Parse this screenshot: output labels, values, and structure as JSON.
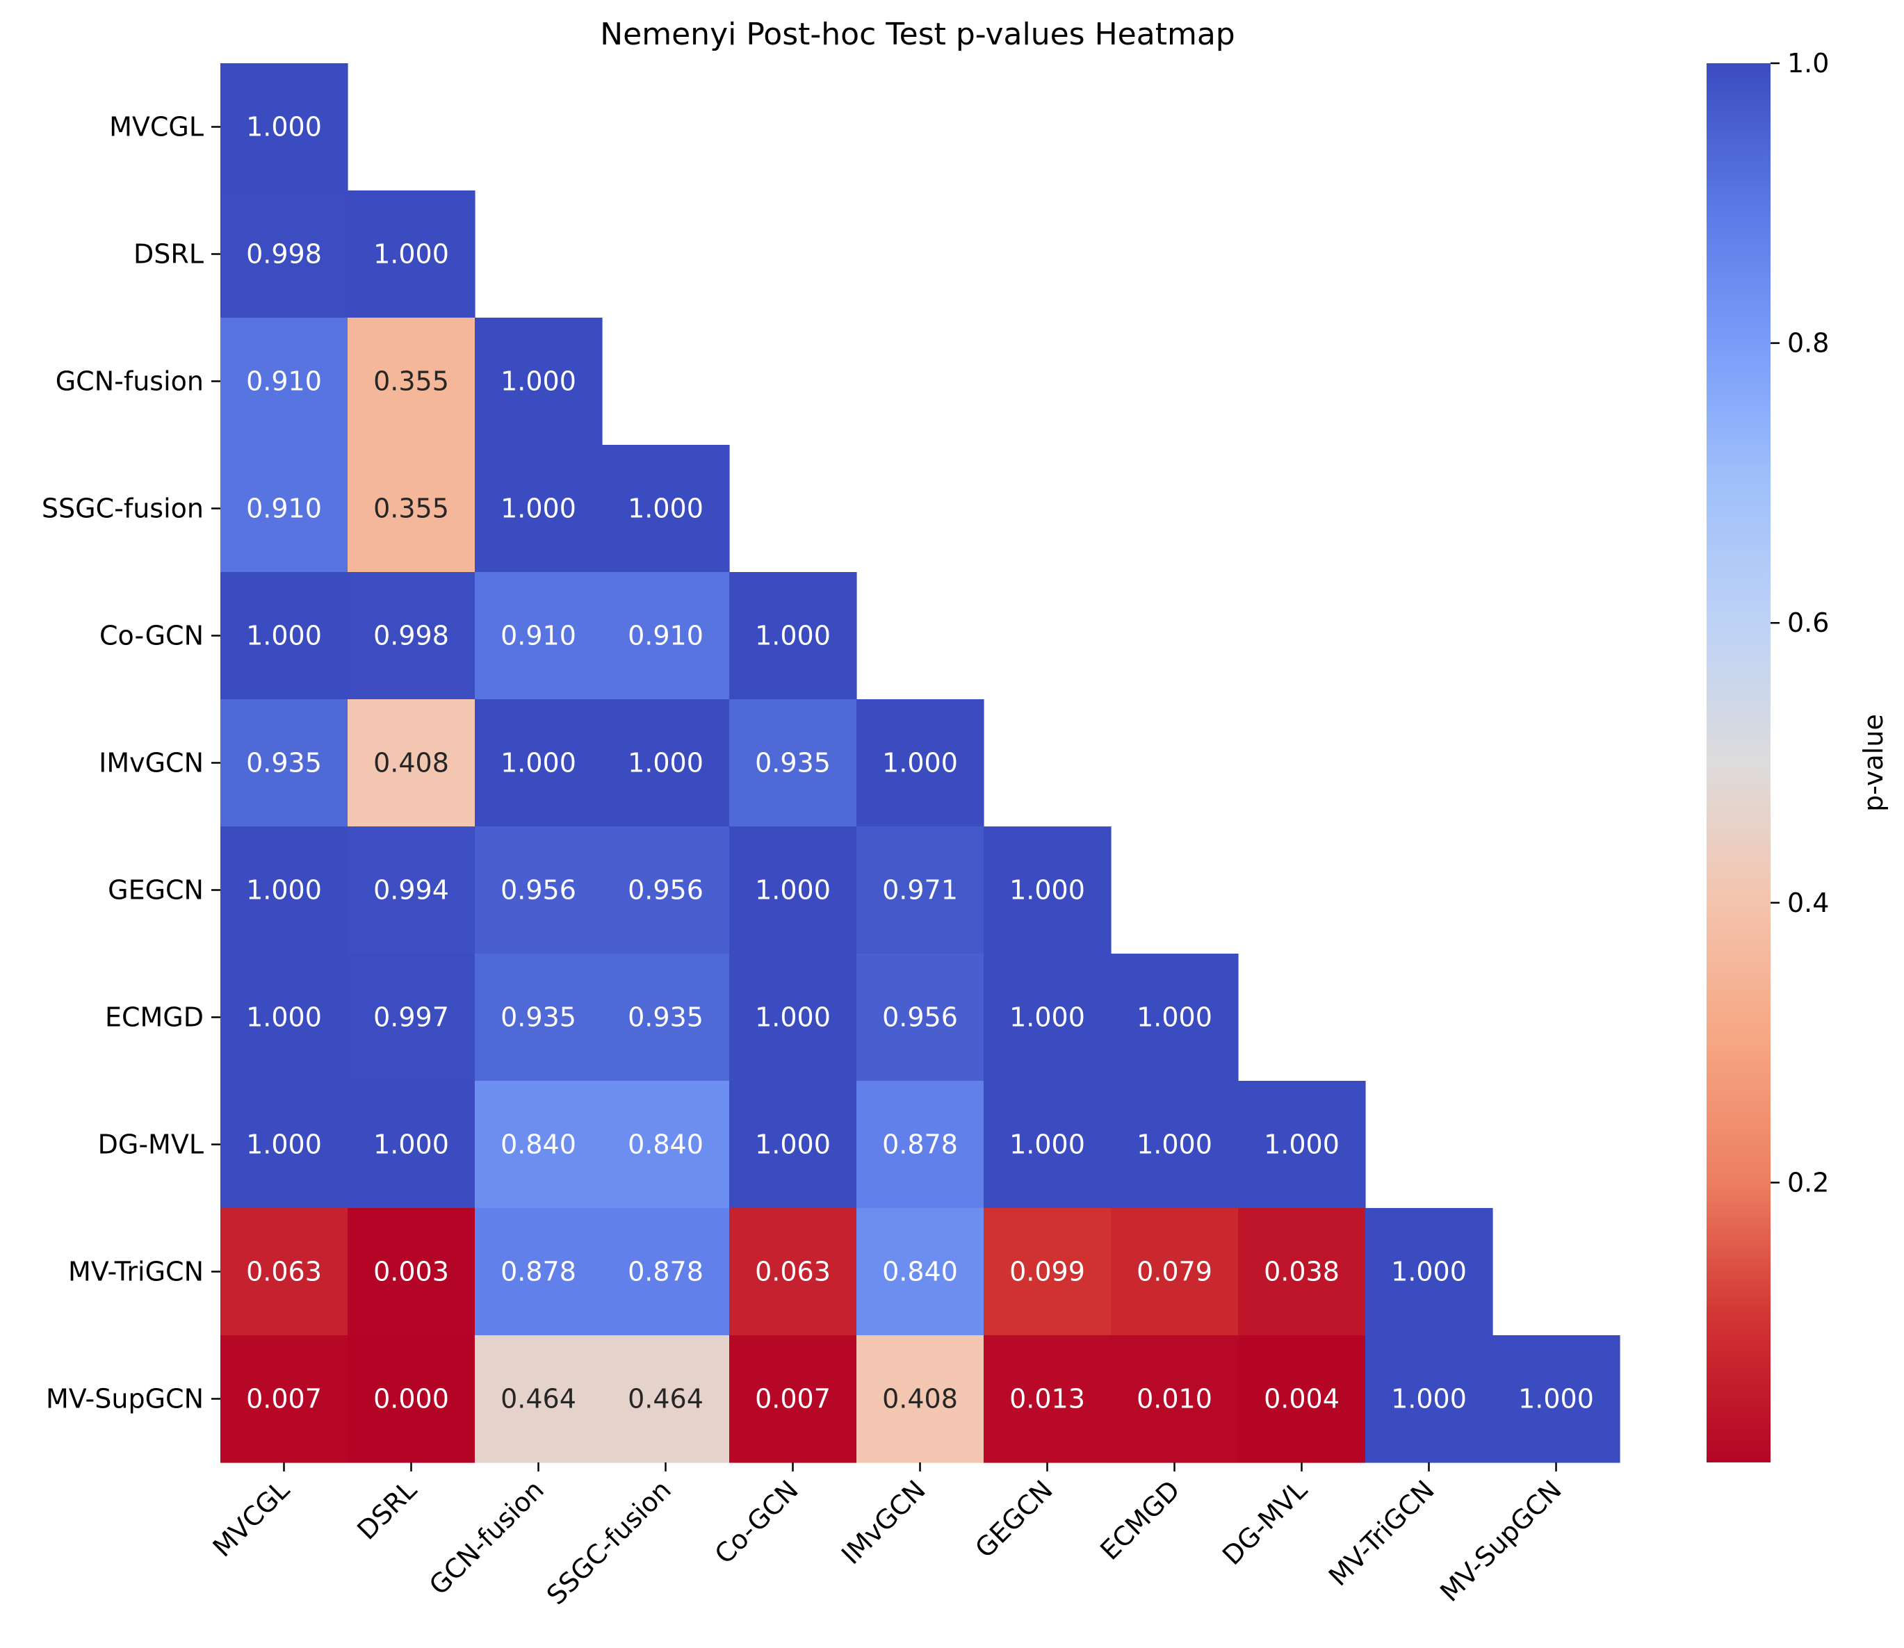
{
  "chart_data": {
    "type": "heatmap",
    "title": "Nemenyi Post-hoc Test p-values Heatmap",
    "xlabel": "",
    "ylabel": "",
    "mask": "lower-triangle-with-diagonal",
    "rows": [
      "MVCGL",
      "DSRL",
      "GCN-fusion",
      "SSGC-fusion",
      "Co-GCN",
      "IMvGCN",
      "GEGCN",
      "ECMGD",
      "DG-MVL",
      "MV-TriGCN",
      "MV-SupGCN"
    ],
    "columns": [
      "MVCGL",
      "DSRL",
      "GCN-fusion",
      "SSGC-fusion",
      "Co-GCN",
      "IMvGCN",
      "GEGCN",
      "ECMGD",
      "DG-MVL",
      "MV-TriGCN",
      "MV-SupGCN"
    ],
    "values": [
      [
        1.0
      ],
      [
        0.998,
        1.0
      ],
      [
        0.91,
        0.355,
        1.0
      ],
      [
        0.91,
        0.355,
        1.0,
        1.0
      ],
      [
        1.0,
        0.998,
        0.91,
        0.91,
        1.0
      ],
      [
        0.935,
        0.408,
        1.0,
        1.0,
        0.935,
        1.0
      ],
      [
        1.0,
        0.994,
        0.956,
        0.956,
        1.0,
        0.971,
        1.0
      ],
      [
        1.0,
        0.997,
        0.935,
        0.935,
        1.0,
        0.956,
        1.0,
        1.0
      ],
      [
        1.0,
        1.0,
        0.84,
        0.84,
        1.0,
        0.878,
        1.0,
        1.0,
        1.0
      ],
      [
        0.063,
        0.003,
        0.878,
        0.878,
        0.063,
        0.84,
        0.099,
        0.079,
        0.038,
        1.0
      ],
      [
        0.007,
        0.0,
        0.464,
        0.464,
        0.007,
        0.408,
        0.013,
        0.01,
        0.004,
        1.0,
        1.0
      ]
    ],
    "value_format": "3 decimals",
    "colormap": "coolwarm_r",
    "vmin": 0.0,
    "vmax": 1.0,
    "colorbar": {
      "label": "p-value",
      "ticks": [
        0.2,
        0.4,
        0.6,
        0.8,
        1.0
      ],
      "tick_labels": [
        "0.2",
        "0.4",
        "0.6",
        "0.8",
        "1.0"
      ],
      "placement": "right"
    },
    "grid": false,
    "legend": "none"
  }
}
